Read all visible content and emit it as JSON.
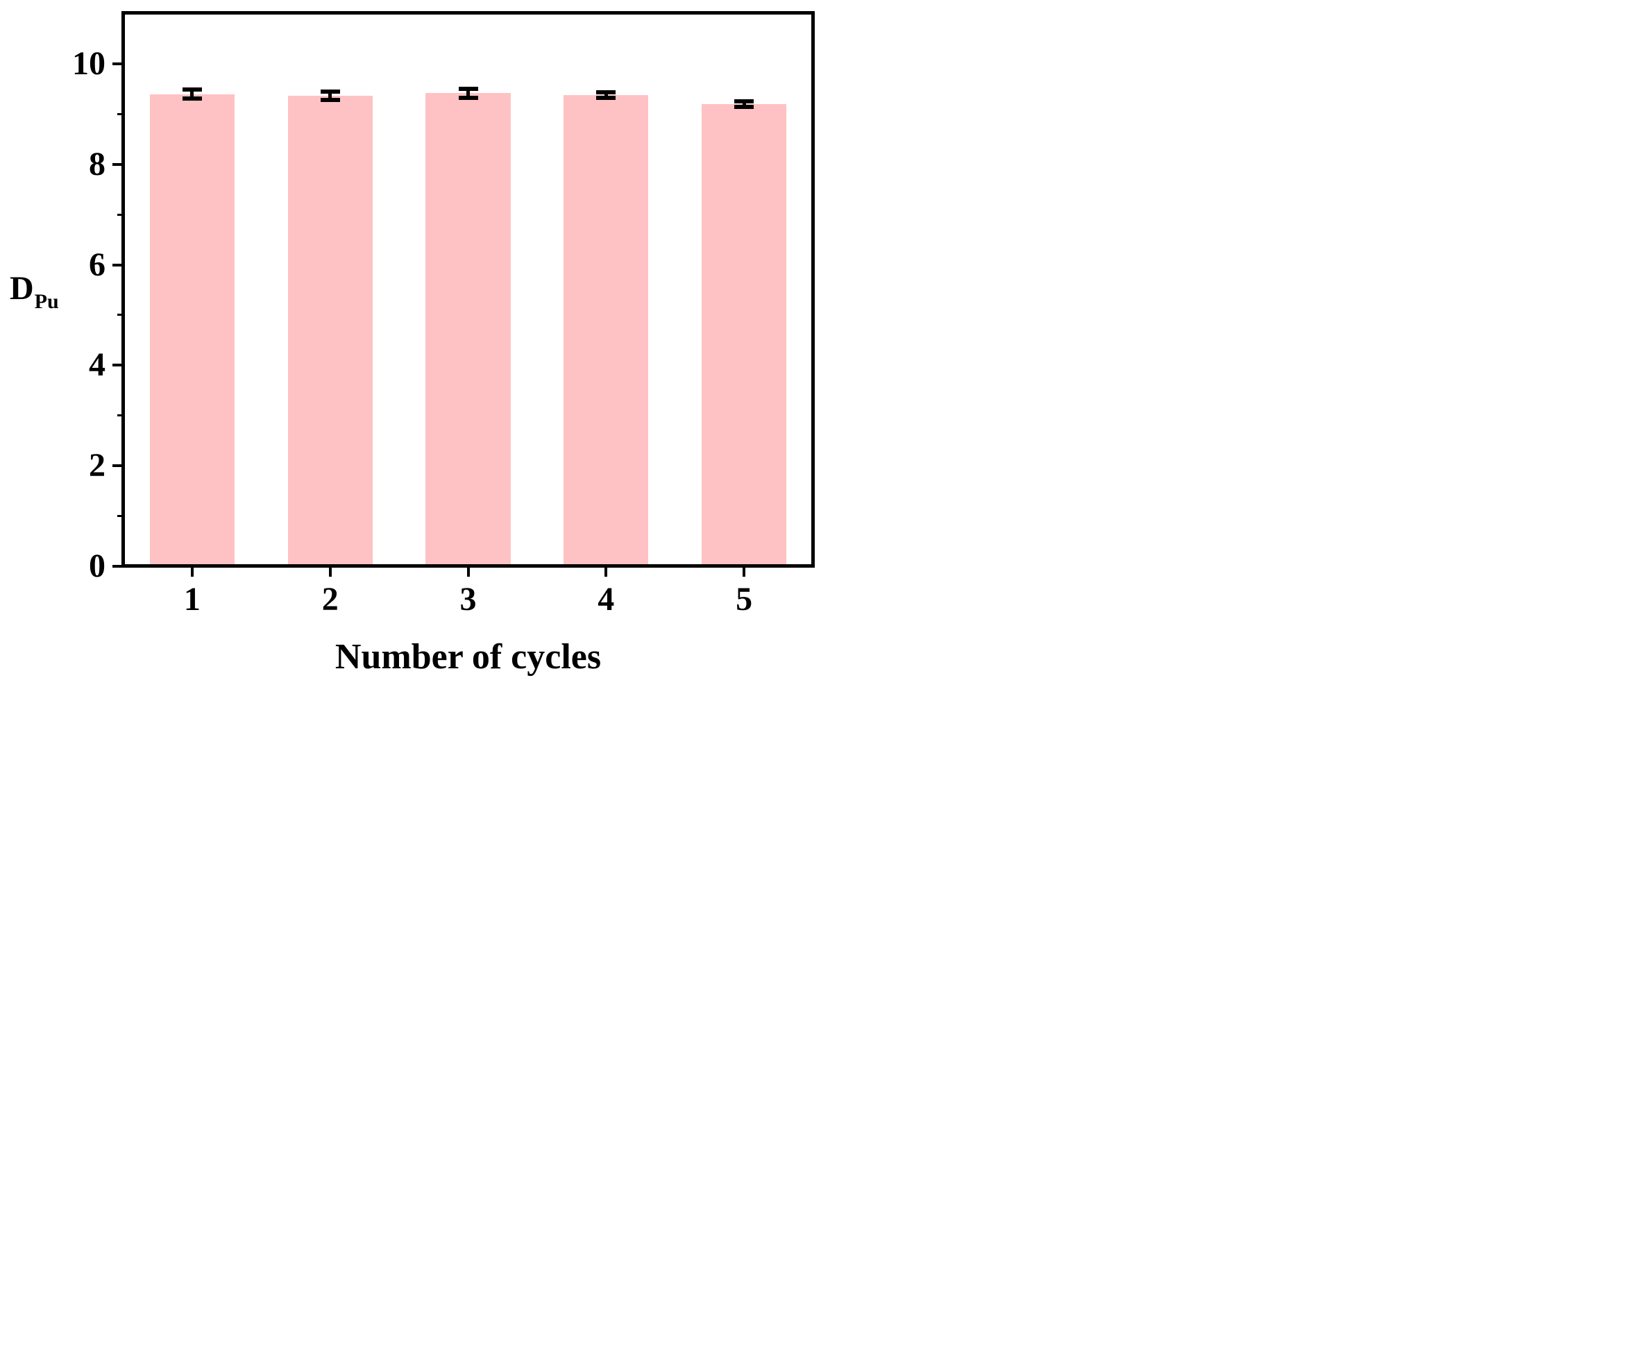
{
  "figure": {
    "background": "#ffffff",
    "frame_color": "#000000",
    "y_axis": {
      "title_main": "D",
      "title_sub": "Pu",
      "major_ticks": [
        0,
        2,
        4,
        6,
        8,
        10
      ],
      "major_tick_labels": [
        "0",
        "2",
        "4",
        "6",
        "8",
        "10"
      ],
      "minor_ticks": [
        1,
        3,
        5,
        7,
        9
      ]
    },
    "x_axis": {
      "title": "Number of cycles",
      "tick_labels": [
        "1",
        "2",
        "3",
        "4",
        "5"
      ]
    }
  },
  "chart_data": {
    "type": "bar",
    "categories": [
      "1",
      "2",
      "3",
      "4",
      "5"
    ],
    "values": [
      9.4,
      9.37,
      9.42,
      9.38,
      9.2
    ],
    "error_bars": [
      0.09,
      0.08,
      0.09,
      0.06,
      0.06
    ],
    "title": "",
    "xlabel": "Number of cycles",
    "ylabel": "D_Pu",
    "ylim": [
      0,
      11.02
    ],
    "y_major_step": 2,
    "y_minor_step": 1,
    "grid": false,
    "legend": false,
    "bar_color": "#ffc2c4",
    "error_color": "#000000",
    "bar_width_fraction": 0.615
  }
}
